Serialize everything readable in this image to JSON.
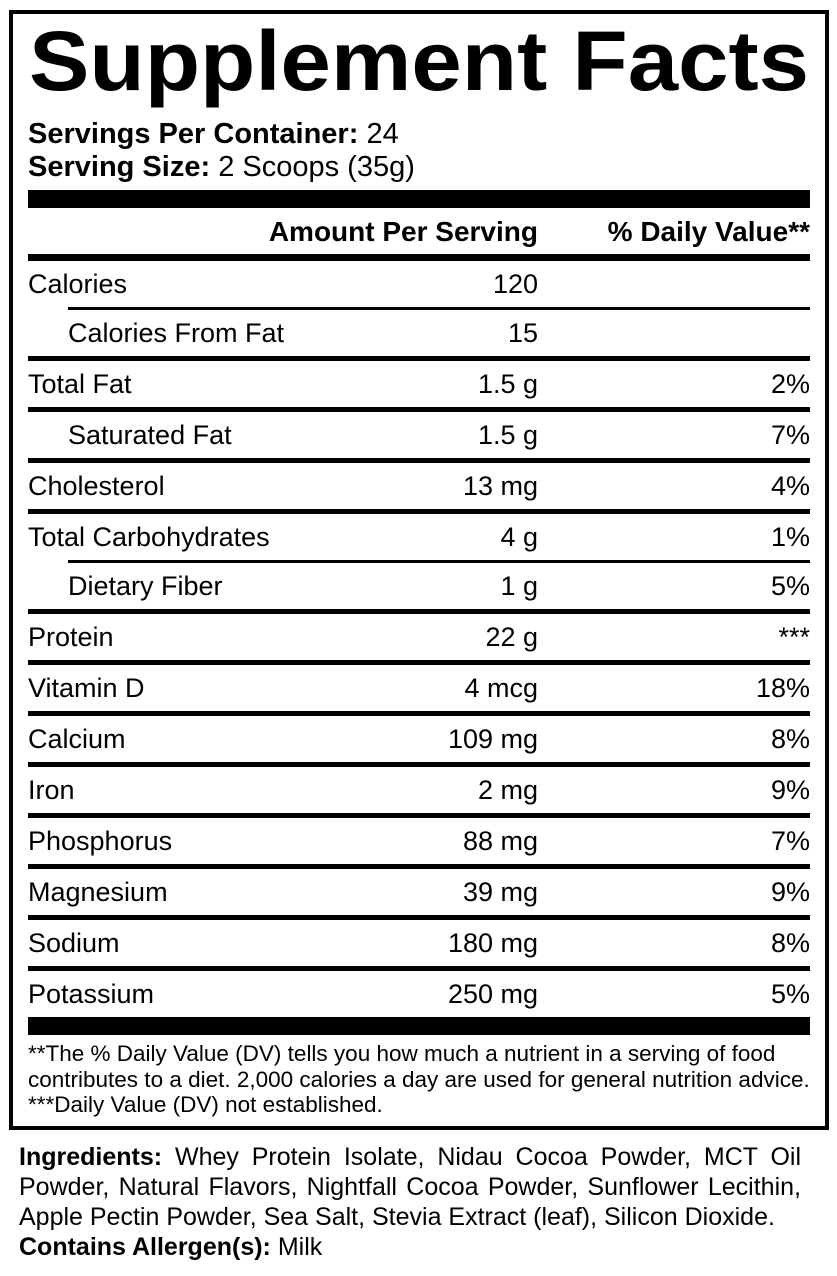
{
  "title": "Supplement Facts",
  "serving_info": {
    "servings_label": "Servings Per Container:",
    "servings_value": "24",
    "size_label": "Serving Size:",
    "size_value": "2 Scoops (35g)"
  },
  "table": {
    "amount_header": "Amount Per Serving",
    "dv_header": "% Daily Value**",
    "rows": [
      {
        "name": "Calories",
        "amount": "120",
        "dv": "",
        "indent": false,
        "sep_after": "sub"
      },
      {
        "name": "Calories From Fat",
        "amount": "15",
        "dv": "",
        "indent": true,
        "sep_after": "main"
      },
      {
        "name": "Total Fat",
        "amount": "1.5 g",
        "dv": "2%",
        "indent": false,
        "sep_after": "main"
      },
      {
        "name": "Saturated Fat",
        "amount": "1.5 g",
        "dv": "7%",
        "indent": true,
        "sep_after": "main"
      },
      {
        "name": "Cholesterol",
        "amount": "13 mg",
        "dv": "4%",
        "indent": false,
        "sep_after": "main"
      },
      {
        "name": "Total Carbohydrates",
        "amount": "4 g",
        "dv": "1%",
        "indent": false,
        "sep_after": "sub"
      },
      {
        "name": "Dietary Fiber",
        "amount": "1 g",
        "dv": "5%",
        "indent": true,
        "sep_after": "main"
      },
      {
        "name": "Protein",
        "amount": "22 g",
        "dv": "***",
        "indent": false,
        "sep_after": "main"
      },
      {
        "name": "Vitamin D",
        "amount": "4 mcg",
        "dv": "18%",
        "indent": false,
        "sep_after": "main"
      },
      {
        "name": "Calcium",
        "amount": "109 mg",
        "dv": "8%",
        "indent": false,
        "sep_after": "main"
      },
      {
        "name": "Iron",
        "amount": "2 mg",
        "dv": "9%",
        "indent": false,
        "sep_after": "main"
      },
      {
        "name": "Phosphorus",
        "amount": "88 mg",
        "dv": "7%",
        "indent": false,
        "sep_after": "main"
      },
      {
        "name": "Magnesium",
        "amount": "39 mg",
        "dv": "9%",
        "indent": false,
        "sep_after": "main"
      },
      {
        "name": "Sodium",
        "amount": "180 mg",
        "dv": "8%",
        "indent": false,
        "sep_after": "main"
      },
      {
        "name": "Potassium",
        "amount": "250 mg",
        "dv": "5%",
        "indent": false,
        "sep_after": "none"
      }
    ]
  },
  "footnotes": {
    "dv_note": "**The % Daily Value (DV) tells you how much a nutrient in a serving of food contributes to a diet. 2,000 calories a day are used for general nutrition advice.",
    "not_established_note": "***Daily Value (DV) not established."
  },
  "ingredients": {
    "label": "Ingredients:",
    "body": "Whey Protein Isolate, Nidau Cocoa Powder, MCT Oil Powder, Natural Flavors, Nightfall Cocoa Powder, Sunflower Lecithin, Apple Pectin Powder, Sea Salt, Stevia Extract (leaf), Silicon Dioxide.",
    "allergen_label": "Contains Allergen(s):",
    "allergen_value": "Milk"
  },
  "colors": {
    "ink": "#000000",
    "paper": "#ffffff"
  }
}
